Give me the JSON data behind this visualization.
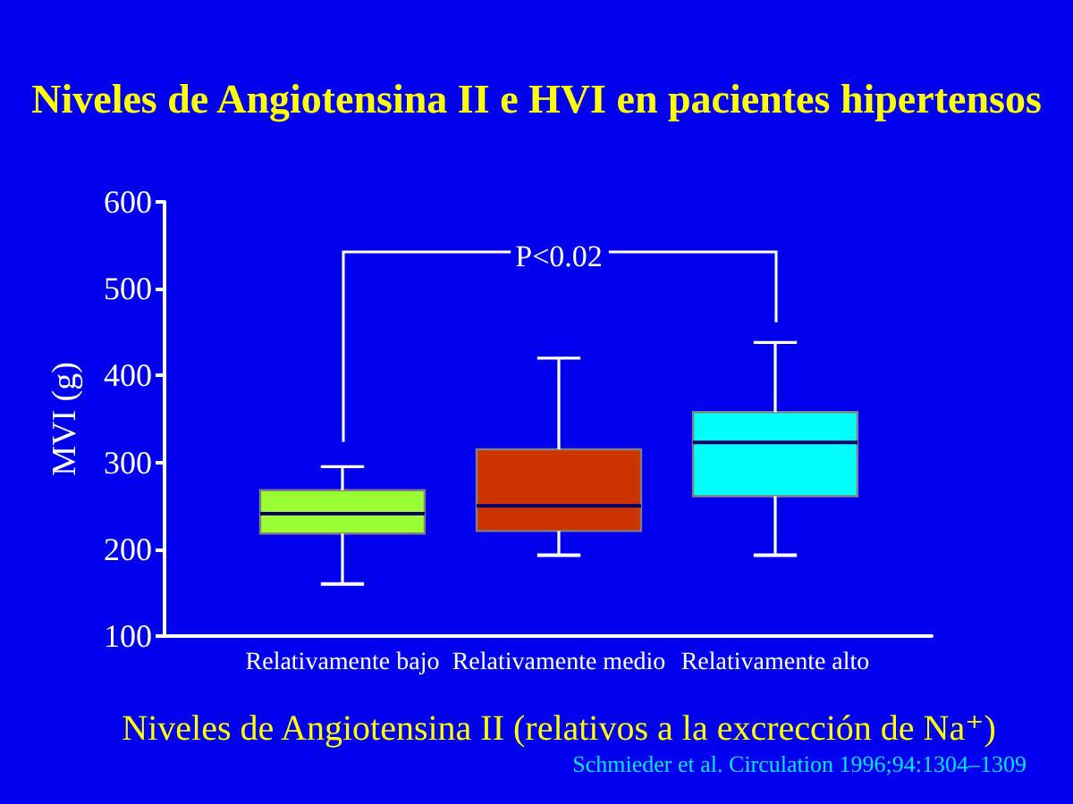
{
  "chart_data": {
    "type": "box",
    "title": "Niveles de Angiotensina II e HVI en pacientes hipertensos",
    "xlabel": "Niveles de Angiotensina II (relativos a la excrección de Na⁺)",
    "ylabel": "MVI (g)",
    "categories": [
      "Relativamente bajo",
      "Relativamente medio",
      "Relativamente alto"
    ],
    "boxes": [
      {
        "low": 160,
        "q1": 218,
        "median": 241,
        "q3": 268,
        "high": 295
      },
      {
        "low": 193,
        "q1": 221,
        "median": 250,
        "q3": 315,
        "high": 420
      },
      {
        "low": 193,
        "q1": 261,
        "median": 323,
        "q3": 358,
        "high": 438
      }
    ],
    "colors": [
      "#99ff33",
      "#cc3300",
      "#00ffff"
    ],
    "ylim": [
      100,
      600
    ],
    "yticks": [
      100,
      200,
      300,
      400,
      500,
      600
    ],
    "annotations": [
      "P<0.02",
      "Schmieder et al. Circulation 1996;94:1304–1309"
    ]
  }
}
